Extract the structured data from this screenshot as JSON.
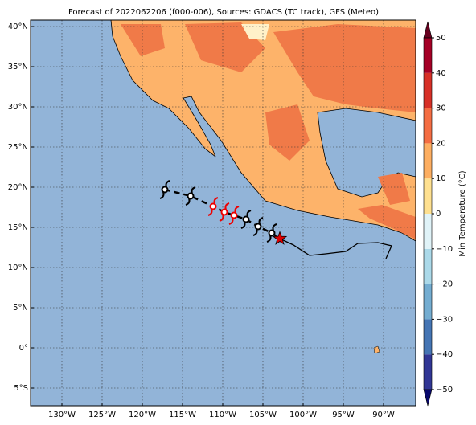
{
  "chart_data": {
    "type": "map",
    "title": "Forecast of 2022062206 (f000-006), Sources: GDACS (TC track), GFS (Meteo)",
    "xlim": [
      -133.9,
      -86
    ],
    "ylim": [
      -7.2,
      40.8
    ],
    "xticks": [
      {
        "value": -130,
        "label": "130°W"
      },
      {
        "value": -125,
        "label": "125°W"
      },
      {
        "value": -120,
        "label": "120°W"
      },
      {
        "value": -115,
        "label": "115°W"
      },
      {
        "value": -110,
        "label": "110°W"
      },
      {
        "value": -105,
        "label": "105°W"
      },
      {
        "value": -100,
        "label": "100°W"
      },
      {
        "value": -95,
        "label": "95°W"
      },
      {
        "value": -90,
        "label": "90°W"
      }
    ],
    "yticks": [
      {
        "value": -5,
        "label": "5°S"
      },
      {
        "value": 0,
        "label": "0°"
      },
      {
        "value": 5,
        "label": "5°N"
      },
      {
        "value": 10,
        "label": "10°N"
      },
      {
        "value": 15,
        "label": "15°N"
      },
      {
        "value": 20,
        "label": "20°N"
      },
      {
        "value": 25,
        "label": "25°N"
      },
      {
        "value": 30,
        "label": "30°N"
      },
      {
        "value": 35,
        "label": "35°N"
      },
      {
        "value": 40,
        "label": "40°N"
      }
    ],
    "grid": true,
    "colorbar": {
      "label": "Min Temperature (°C)",
      "lim": [
        -50,
        50
      ],
      "ticks": [
        {
          "value": -50,
          "label": "−50"
        },
        {
          "value": -40,
          "label": "−40"
        },
        {
          "value": -30,
          "label": "−30"
        },
        {
          "value": -20,
          "label": "−20"
        },
        {
          "value": -10,
          "label": "−10"
        },
        0,
        10,
        20,
        30,
        40,
        50
      ],
      "colors": [
        "#313695",
        "#4575b4",
        "#74add1",
        "#abd9e9",
        "#e0f3f8",
        "#fee090",
        "#fdae61",
        "#f46d43",
        "#d73027",
        "#a50026"
      ]
    },
    "track": {
      "lon": [
        -117.2,
        -114,
        -111.2,
        -109.8,
        -108.6,
        -107.1,
        -105.6,
        -103.9
      ],
      "lat": [
        19.7,
        18.9,
        17.6,
        16.9,
        16.5,
        16,
        15.1,
        14.3
      ],
      "colors": [
        "#000",
        "#000",
        "#e00",
        "#e00",
        "#e00",
        "#000",
        "#000",
        "#000"
      ],
      "current_lon": -102.9,
      "current_lat": 13.6
    }
  }
}
